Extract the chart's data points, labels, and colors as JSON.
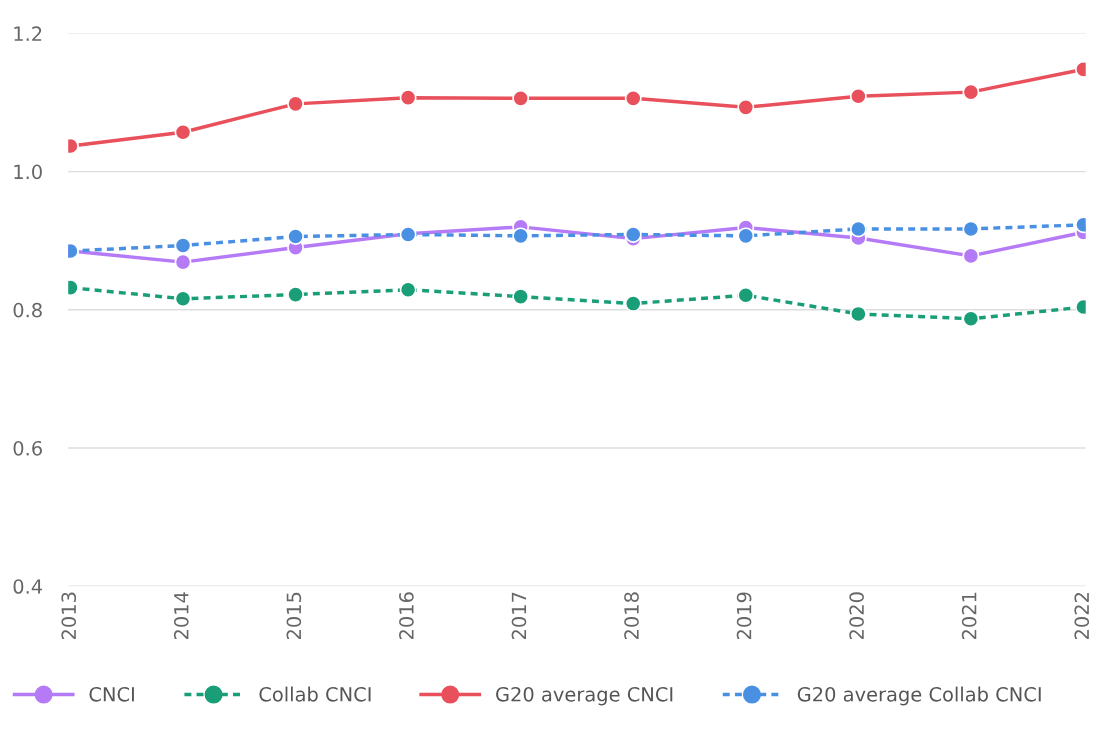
{
  "chart_data": {
    "type": "line",
    "categories": [
      "2013",
      "2014",
      "2015",
      "2016",
      "2017",
      "2018",
      "2019",
      "2020",
      "2021",
      "2022"
    ],
    "series": [
      {
        "name": "CNCI",
        "color": "#b57bf7",
        "line_style": "solid",
        "values": [
          0.885,
          0.869,
          0.89,
          0.91,
          0.92,
          0.903,
          0.919,
          0.904,
          0.878,
          0.912
        ]
      },
      {
        "name": "Collab CNCI",
        "color": "#1a9e77",
        "line_style": "dashed",
        "values": [
          0.832,
          0.816,
          0.822,
          0.829,
          0.819,
          0.809,
          0.821,
          0.794,
          0.787,
          0.804
        ]
      },
      {
        "name": "G20 average CNCI",
        "color": "#e8505b",
        "line_style": "solid",
        "values": [
          1.037,
          1.057,
          1.098,
          1.107,
          1.106,
          1.106,
          1.093,
          1.109,
          1.115,
          1.148
        ]
      },
      {
        "name": "G20 average Collab CNCI",
        "color": "#4a90e2",
        "line_style": "dashed",
        "values": [
          0.885,
          0.893,
          0.906,
          0.909,
          0.907,
          0.909,
          0.907,
          0.917,
          0.917,
          0.923
        ]
      }
    ],
    "ylim": [
      0.4,
      1.2
    ],
    "yticks": [
      0.4,
      0.6,
      0.8,
      {
        "value": 1,
        "label": "1.0"
      },
      1.2
    ],
    "grid": "y",
    "legend": "bottom",
    "marker": "circle"
  }
}
